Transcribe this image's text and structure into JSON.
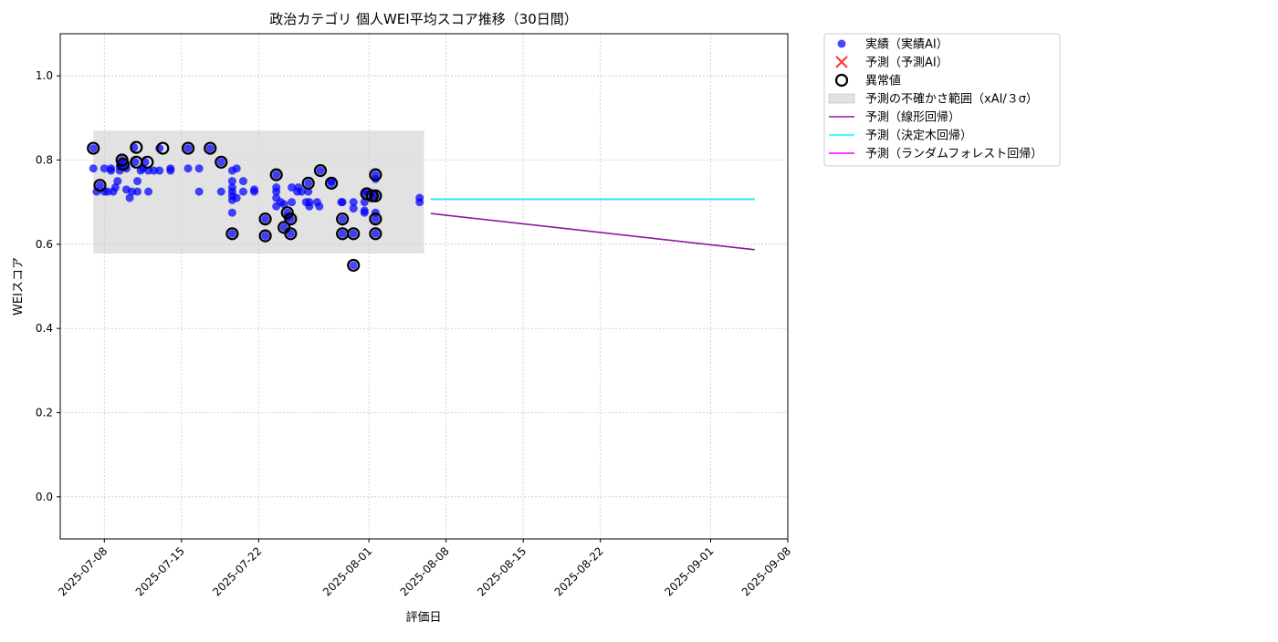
{
  "chart_data": {
    "type": "scatter",
    "title": "政治カテゴリ 個人WEI平均スコア推移（30日間）",
    "xlabel": "評価日",
    "ylabel": "WEIスコア",
    "ylim": [
      -0.1,
      1.1
    ],
    "xlim": [
      "2025-07-04",
      "2025-09-08"
    ],
    "yticks": [
      0.0,
      0.2,
      0.4,
      0.6,
      0.8,
      1.0
    ],
    "ytick_labels": [
      "0.0",
      "0.2",
      "0.4",
      "0.6",
      "0.8",
      "1.0"
    ],
    "xticks": [
      "2025-07-08",
      "2025-07-15",
      "2025-07-22",
      "2025-08-01",
      "2025-08-08",
      "2025-08-15",
      "2025-08-22",
      "2025-09-01",
      "2025-09-08"
    ],
    "grid": true,
    "legend_position": "outside-top-right",
    "colors": {
      "actual": "#0000ff",
      "predicted_ai": "#ff3333",
      "anomaly": "#000000",
      "uncertainty_band": "#d3d3d3",
      "linear": "#8b1a9a",
      "decision_tree": "#00ffff",
      "random_forest": "#ff00ff"
    },
    "legend": [
      {
        "key": "actual",
        "label": "実績（実績AI）",
        "marker": "dot"
      },
      {
        "key": "predicted_ai",
        "label": "予測（予測AI）",
        "marker": "x"
      },
      {
        "key": "anomaly",
        "label": "異常値",
        "marker": "ring"
      },
      {
        "key": "uncertainty_band",
        "label": "予測の不確かさ範囲（xAI/３σ）",
        "marker": "band"
      },
      {
        "key": "linear",
        "label": "予測（線形回帰）",
        "marker": "line"
      },
      {
        "key": "decision_tree",
        "label": "予測（決定木回帰）",
        "marker": "line"
      },
      {
        "key": "random_forest",
        "label": "予測（ランダムフォレスト回帰）",
        "marker": "line"
      }
    ],
    "uncertainty_band": {
      "x_start": "2025-07-07",
      "x_end": "2025-08-06",
      "y_low": 0.578,
      "y_high": 0.87
    },
    "series": [
      {
        "key": "actual",
        "type": "scatter",
        "points": [
          [
            "2025-07-07",
            0.828
          ],
          [
            "2025-07-07",
            0.78
          ],
          [
            "2025-07-07.3",
            0.725
          ],
          [
            "2025-07-07.6",
            0.74
          ],
          [
            "2025-07-08",
            0.78
          ],
          [
            "2025-07-08",
            0.725
          ],
          [
            "2025-07-08.3",
            0.725
          ],
          [
            "2025-07-08.6",
            0.78
          ],
          [
            "2025-07-08.6",
            0.775
          ],
          [
            "2025-07-08.8",
            0.725
          ],
          [
            "2025-07-09",
            0.735
          ],
          [
            "2025-07-09.2",
            0.75
          ],
          [
            "2025-07-09.4",
            0.775
          ],
          [
            "2025-07-09.4",
            0.785
          ],
          [
            "2025-07-09.6",
            0.8
          ],
          [
            "2025-07-09.7",
            0.79
          ],
          [
            "2025-07-10",
            0.78
          ],
          [
            "2025-07-10",
            0.73
          ],
          [
            "2025-07-10.3",
            0.71
          ],
          [
            "2025-07-10.5",
            0.725
          ],
          [
            "2025-07-10.7",
            0.83
          ],
          [
            "2025-07-10.8",
            0.795
          ],
          [
            "2025-07-11",
            0.75
          ],
          [
            "2025-07-11",
            0.725
          ],
          [
            "2025-07-11.3",
            0.775
          ],
          [
            "2025-07-11.5",
            0.78
          ],
          [
            "2025-07-11.7",
            0.795
          ],
          [
            "2025-07-12",
            0.725
          ],
          [
            "2025-07-12",
            0.775
          ],
          [
            "2025-07-12.5",
            0.775
          ],
          [
            "2025-07-13",
            0.775
          ],
          [
            "2025-07-13",
            0.828
          ],
          [
            "2025-07-14",
            0.775
          ],
          [
            "2025-07-14",
            0.78
          ],
          [
            "2025-07-15.6",
            0.828
          ],
          [
            "2025-07-15.6",
            0.78
          ],
          [
            "2025-07-16.6",
            0.78
          ],
          [
            "2025-07-16.6",
            0.725
          ],
          [
            "2025-07-17.6",
            0.828
          ],
          [
            "2025-07-18.6",
            0.795
          ],
          [
            "2025-07-18.6",
            0.725
          ],
          [
            "2025-07-19.6",
            0.775
          ],
          [
            "2025-07-19.6",
            0.75
          ],
          [
            "2025-07-19.6",
            0.735
          ],
          [
            "2025-07-19.6",
            0.725
          ],
          [
            "2025-07-19.6",
            0.715
          ],
          [
            "2025-07-19.6",
            0.705
          ],
          [
            "2025-07-19.6",
            0.675
          ],
          [
            "2025-07-19.6",
            0.625
          ],
          [
            "2025-07-20",
            0.78
          ],
          [
            "2025-07-20",
            0.71
          ],
          [
            "2025-07-20.6",
            0.75
          ],
          [
            "2025-07-20.6",
            0.725
          ],
          [
            "2025-07-21.6",
            0.725
          ],
          [
            "2025-07-21.6",
            0.73
          ],
          [
            "2025-07-22.6",
            0.66
          ],
          [
            "2025-07-22.6",
            0.62
          ],
          [
            "2025-07-23.6",
            0.765
          ],
          [
            "2025-07-23.6",
            0.735
          ],
          [
            "2025-07-23.6",
            0.725
          ],
          [
            "2025-07-23.6",
            0.71
          ],
          [
            "2025-07-23.6",
            0.69
          ],
          [
            "2025-07-24",
            0.7
          ],
          [
            "2025-07-24.3",
            0.64
          ],
          [
            "2025-07-24.3",
            0.695
          ],
          [
            "2025-07-24.6",
            0.675
          ],
          [
            "2025-07-24.6",
            0.665
          ],
          [
            "2025-07-24.9",
            0.66
          ],
          [
            "2025-07-24.9",
            0.625
          ],
          [
            "2025-07-25",
            0.7
          ],
          [
            "2025-07-25",
            0.735
          ],
          [
            "2025-07-25.5",
            0.725
          ],
          [
            "2025-07-25.6",
            0.735
          ],
          [
            "2025-07-25.9",
            0.725
          ],
          [
            "2025-07-26.3",
            0.7
          ],
          [
            "2025-07-26.5",
            0.745
          ],
          [
            "2025-07-26.5",
            0.725
          ],
          [
            "2025-07-26.6",
            0.69
          ],
          [
            "2025-07-26.6",
            0.7
          ],
          [
            "2025-07-27.3",
            0.7
          ],
          [
            "2025-07-27.5",
            0.69
          ],
          [
            "2025-07-27.6",
            0.775
          ],
          [
            "2025-07-28.6",
            0.75
          ],
          [
            "2025-07-28.6",
            0.745
          ],
          [
            "2025-07-29.5",
            0.7
          ],
          [
            "2025-07-29.6",
            0.7
          ],
          [
            "2025-07-29.6",
            0.66
          ],
          [
            "2025-07-29.6",
            0.625
          ],
          [
            "2025-07-30.6",
            0.7
          ],
          [
            "2025-07-30.6",
            0.685
          ],
          [
            "2025-07-30.6",
            0.625
          ],
          [
            "2025-07-30.6",
            0.55
          ],
          [
            "2025-07-31.6",
            0.7
          ],
          [
            "2025-07-31.6",
            0.72
          ],
          [
            "2025-07-31.6",
            0.68
          ],
          [
            "2025-07-31.6",
            0.675
          ],
          [
            "2025-07-31.8",
            0.725
          ],
          [
            "2025-08-01.3",
            0.715
          ],
          [
            "2025-08-01.6",
            0.765
          ],
          [
            "2025-08-01.6",
            0.755
          ],
          [
            "2025-08-01.6",
            0.715
          ],
          [
            "2025-08-01.6",
            0.675
          ],
          [
            "2025-08-01.6",
            0.66
          ],
          [
            "2025-08-01.6",
            0.625
          ],
          [
            "2025-08-05.6",
            0.71
          ],
          [
            "2025-08-05.6",
            0.7
          ]
        ]
      },
      {
        "key": "anomaly",
        "type": "scatter",
        "points": [
          [
            "2025-07-07",
            0.828
          ],
          [
            "2025-07-07.6",
            0.74
          ],
          [
            "2025-07-09.6",
            0.8
          ],
          [
            "2025-07-09.7",
            0.79
          ],
          [
            "2025-07-10.9",
            0.83
          ],
          [
            "2025-07-10.9",
            0.795
          ],
          [
            "2025-07-11.9",
            0.795
          ],
          [
            "2025-07-13.3",
            0.828
          ],
          [
            "2025-07-15.6",
            0.828
          ],
          [
            "2025-07-17.6",
            0.828
          ],
          [
            "2025-07-18.6",
            0.795
          ],
          [
            "2025-07-19.6",
            0.625
          ],
          [
            "2025-07-22.6",
            0.66
          ],
          [
            "2025-07-22.6",
            0.62
          ],
          [
            "2025-07-23.6",
            0.765
          ],
          [
            "2025-07-24.3",
            0.64
          ],
          [
            "2025-07-24.6",
            0.675
          ],
          [
            "2025-07-24.9",
            0.66
          ],
          [
            "2025-07-24.9",
            0.625
          ],
          [
            "2025-07-26.5",
            0.745
          ],
          [
            "2025-07-27.6",
            0.775
          ],
          [
            "2025-07-28.6",
            0.745
          ],
          [
            "2025-07-29.6",
            0.66
          ],
          [
            "2025-07-29.6",
            0.625
          ],
          [
            "2025-07-30.6",
            0.625
          ],
          [
            "2025-07-30.6",
            0.55
          ],
          [
            "2025-07-31.8",
            0.72
          ],
          [
            "2025-08-01.3",
            0.715
          ],
          [
            "2025-08-01.6",
            0.765
          ],
          [
            "2025-08-01.6",
            0.715
          ],
          [
            "2025-08-01.6",
            0.66
          ],
          [
            "2025-08-01.6",
            0.625
          ]
        ]
      },
      {
        "key": "linear",
        "type": "line",
        "points": [
          [
            "2025-08-06.6",
            0.673
          ],
          [
            "2025-09-05",
            0.587
          ]
        ]
      },
      {
        "key": "random_forest",
        "type": "line",
        "points": [
          [
            "2025-08-06.6",
            0.707
          ],
          [
            "2025-09-05",
            0.707
          ]
        ]
      },
      {
        "key": "decision_tree",
        "type": "line",
        "points": [
          [
            "2025-08-06.6",
            0.707
          ],
          [
            "2025-09-05",
            0.707
          ]
        ]
      }
    ]
  }
}
